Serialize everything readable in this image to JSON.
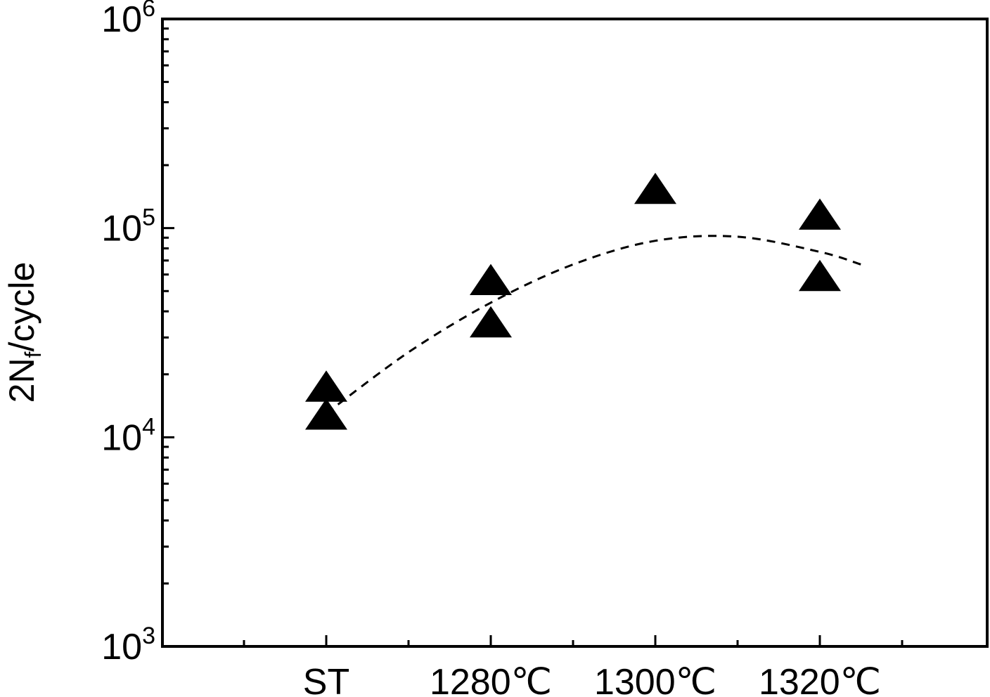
{
  "chart_data": {
    "type": "scatter",
    "categories": [
      "ST",
      "1280℃",
      "1300℃",
      "1320℃"
    ],
    "y_scale": "log",
    "ylim": [
      1000,
      1000000
    ],
    "y_ticks": [
      {
        "base": "10",
        "exp": "3",
        "value": 1000
      },
      {
        "base": "10",
        "exp": "4",
        "value": 10000
      },
      {
        "base": "10",
        "exp": "5",
        "value": 100000
      },
      {
        "base": "10",
        "exp": "6",
        "value": 1000000
      }
    ],
    "ylabel": {
      "main": "2N",
      "sub": "f",
      "rest": "/cycle"
    },
    "xlabel": "",
    "grid": false,
    "marker": "filled-triangle",
    "points": [
      {
        "category": "ST",
        "value": 17000
      },
      {
        "category": "ST",
        "value": 12500
      },
      {
        "category": "1280℃",
        "value": 55000
      },
      {
        "category": "1280℃",
        "value": 34500
      },
      {
        "category": "1300℃",
        "value": 150000
      },
      {
        "category": "1320℃",
        "value": 113000
      },
      {
        "category": "1320℃",
        "value": 57500
      }
    ],
    "trend_line": {
      "style": "dashed",
      "x": [
        0.0,
        0.5,
        1.0,
        1.5,
        2.0,
        2.5,
        3.0,
        3.25
      ],
      "values": [
        13000,
        25500,
        44000,
        67000,
        87000,
        91000,
        77000,
        67000
      ]
    },
    "colors": {
      "marker": "#000000",
      "line": "#000000",
      "axes": "#000000"
    }
  }
}
